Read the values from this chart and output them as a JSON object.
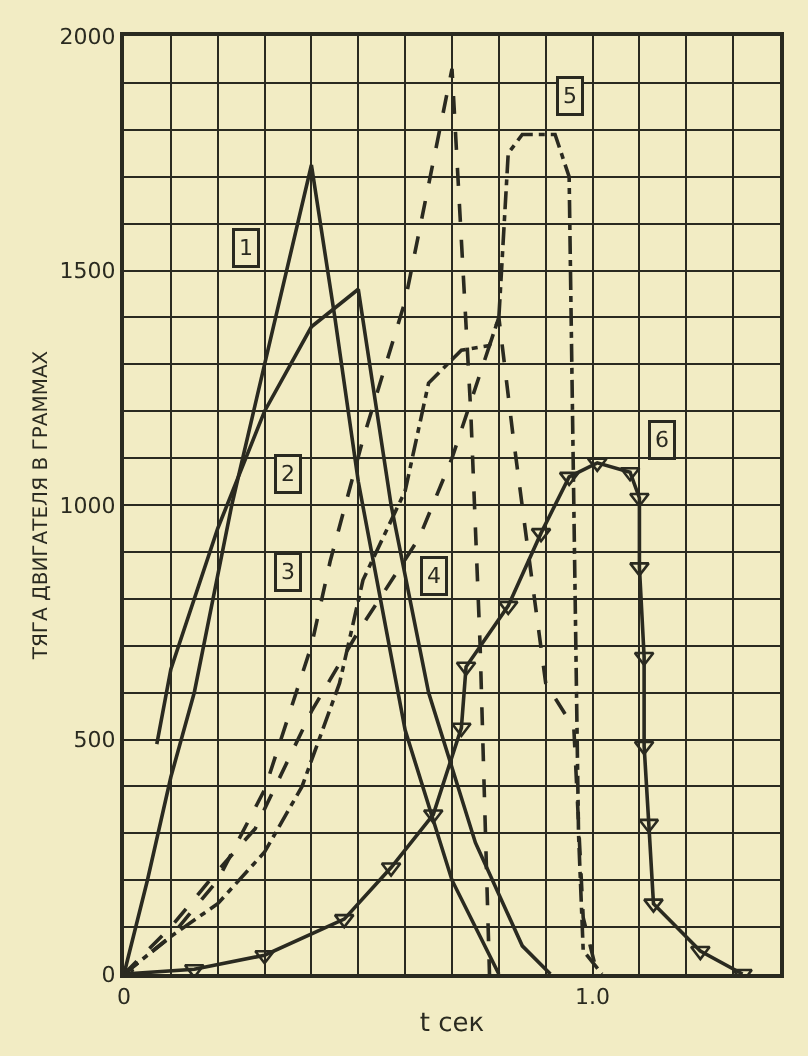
{
  "chart_data": {
    "type": "line",
    "xlabel": "t сек",
    "ylabel": "ТЯГА ДВИГАТЕЛЯ В ГРАММАХ",
    "xlim": [
      0,
      1.4
    ],
    "xticks": [
      0,
      {
        "value": 0.1,
        "label": null
      },
      {
        "value": 0.2,
        "label": null
      },
      {
        "value": 0.3,
        "label": null
      },
      {
        "value": 0.4,
        "label": null
      },
      {
        "value": 0.5,
        "label": null
      },
      {
        "value": 0.6,
        "label": null
      },
      {
        "value": 0.7,
        "label": null
      },
      {
        "value": 0.8,
        "label": null
      },
      {
        "value": 0.9,
        "label": null
      },
      {
        "value": 1.0,
        "label": "1.0"
      },
      {
        "value": 1.1,
        "label": null
      },
      {
        "value": 1.2,
        "label": null
      },
      {
        "value": 1.3,
        "label": null
      }
    ],
    "ylim": [
      0,
      2000
    ],
    "yticks": [
      0,
      {
        "value": 100,
        "label": null
      },
      {
        "value": 200,
        "label": null
      },
      {
        "value": 300,
        "label": null
      },
      {
        "value": 400,
        "label": null
      },
      500,
      {
        "value": 600,
        "label": null
      },
      {
        "value": 700,
        "label": null
      },
      {
        "value": 800,
        "label": null
      },
      {
        "value": 900,
        "label": null
      },
      1000,
      {
        "value": 1100,
        "label": null
      },
      {
        "value": 1200,
        "label": null
      },
      {
        "value": 1300,
        "label": null
      },
      {
        "value": 1400,
        "label": null
      },
      1500,
      {
        "value": 1600,
        "label": null
      },
      {
        "value": 1700,
        "label": null
      },
      {
        "value": 1800,
        "label": null
      },
      {
        "value": 1900,
        "label": null
      },
      2000
    ],
    "grid": true,
    "series": [
      {
        "color": "#2a2a20",
        "line_style": "solid",
        "x": [
          0,
          0.05,
          0.1,
          0.15,
          0.23,
          0.3,
          0.4,
          0.45,
          0.5,
          0.6,
          0.7,
          0.8
        ],
        "values": [
          0,
          200,
          420,
          600,
          1000,
          1300,
          1725,
          1400,
          1050,
          520,
          200,
          0
        ]
      },
      {
        "color": "#2a2a20",
        "line_style": "solid",
        "x": [
          0.07,
          0.1,
          0.2,
          0.3,
          0.4,
          0.5,
          0.57,
          0.65,
          0.75,
          0.85,
          0.91
        ],
        "values": [
          490,
          650,
          950,
          1200,
          1380,
          1460,
          1000,
          600,
          280,
          60,
          0
        ]
      },
      {
        "color": "#2a2a20",
        "line_style": "dashed",
        "x": [
          0,
          0.1,
          0.2,
          0.3,
          0.4,
          0.44,
          0.51,
          0.6,
          0.7,
          0.74,
          0.76,
          0.78
        ],
        "values": [
          0,
          80,
          200,
          393,
          700,
          880,
          1140,
          1435,
          1930,
          1200,
          700,
          0
        ]
      },
      {
        "color": "#2a2a20",
        "line_style": "dashed",
        "x": [
          0,
          0.1,
          0.2,
          0.28,
          0.4,
          0.5,
          0.63,
          0.7,
          0.8,
          0.83,
          0.86,
          0.9,
          0.96,
          0.98,
          1.01
        ],
        "values": [
          0,
          100,
          220,
          310,
          560,
          730,
          930,
          1100,
          1400,
          1150,
          920,
          620,
          525,
          120,
          0
        ]
      },
      {
        "color": "#2a2a20",
        "line_style": "dotted",
        "x": [
          0,
          0.1,
          0.2,
          0.3,
          0.38,
          0.46,
          0.51,
          0.6,
          0.65,
          0.72,
          0.78,
          0.8,
          0.82,
          0.85,
          0.92,
          0.95,
          0.96,
          0.97,
          0.98,
          1.02
        ],
        "values": [
          0,
          80,
          150,
          260,
          400,
          620,
          840,
          1030,
          1260,
          1330,
          1340,
          1400,
          1750,
          1790,
          1790,
          1700,
          1000,
          300,
          50,
          0
        ]
      },
      {
        "color": "#2a2a20",
        "line_style": "solid",
        "marker": "triangle",
        "x": [
          0,
          0.15,
          0.3,
          0.47,
          0.57,
          0.66,
          0.72,
          0.73,
          0.82,
          0.89,
          0.95,
          1.01,
          1.08,
          1.1,
          1.1,
          1.11,
          1.11,
          1.12,
          1.13,
          1.23,
          1.32
        ],
        "values": [
          0,
          10,
          40,
          117,
          227,
          340,
          525,
          655,
          785,
          940,
          1060,
          1090,
          1070,
          1015,
          867,
          676,
          486,
          320,
          150,
          49,
          0
        ]
      }
    ],
    "annotations": [
      {
        "text": "1",
        "x": 0.26,
        "y": 1550
      },
      {
        "text": "2",
        "x": 0.35,
        "y": 1065
      },
      {
        "text": "3",
        "x": 0.35,
        "y": 858
      },
      {
        "text": "4",
        "x": 0.66,
        "y": 850
      },
      {
        "text": "5",
        "x": 0.95,
        "y": 1870
      },
      {
        "text": "6",
        "x": 1.15,
        "y": 1140
      }
    ]
  }
}
